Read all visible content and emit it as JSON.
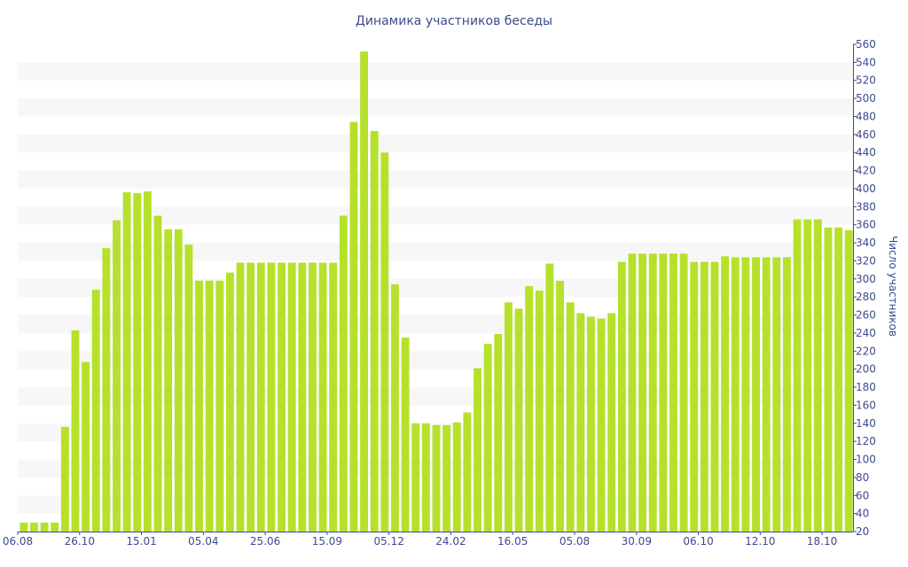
{
  "chart_data": {
    "type": "bar",
    "title": "Динамика участников беседы",
    "xlabel": "",
    "ylabel": "Число участников",
    "ylim": [
      20,
      560
    ],
    "yticks": [
      20,
      40,
      60,
      80,
      100,
      120,
      140,
      160,
      180,
      200,
      220,
      240,
      260,
      280,
      300,
      320,
      340,
      360,
      380,
      400,
      420,
      440,
      460,
      480,
      500,
      520,
      540,
      560
    ],
    "grid": "horizontal bands",
    "y_axis_position": "right",
    "bar_color": "#b5e12b",
    "band_color": "#f7f7f7",
    "text_color": "#3b4b8c",
    "values": [
      30,
      30,
      30,
      30,
      136,
      243,
      208,
      288,
      334,
      365,
      396,
      395,
      397,
      370,
      355,
      355,
      338,
      298,
      298,
      298,
      307,
      318,
      318,
      318,
      318,
      318,
      318,
      318,
      318,
      318,
      318,
      370,
      474,
      552,
      464,
      440,
      294,
      235,
      140,
      140,
      138,
      138,
      141,
      152,
      201,
      228,
      239,
      274,
      267,
      292,
      287,
      317,
      298,
      274,
      262,
      258,
      256,
      262,
      319,
      328,
      328,
      328,
      328,
      328,
      328,
      319,
      319,
      319,
      325,
      324,
      324,
      324,
      324,
      324,
      324,
      366,
      366,
      366,
      357,
      357,
      354
    ],
    "xtick_labels": [
      {
        "index": 0,
        "label": "06.08"
      },
      {
        "index": 6,
        "label": "26.10"
      },
      {
        "index": 12,
        "label": "15.01"
      },
      {
        "index": 18,
        "label": "05.04"
      },
      {
        "index": 24,
        "label": "25.06"
      },
      {
        "index": 30,
        "label": "15.09"
      },
      {
        "index": 36,
        "label": "05.12"
      },
      {
        "index": 42,
        "label": "24.02"
      },
      {
        "index": 48,
        "label": "16.05"
      },
      {
        "index": 54,
        "label": "05.08"
      },
      {
        "index": 60,
        "label": "30.09"
      },
      {
        "index": 66,
        "label": "06.10"
      },
      {
        "index": 72,
        "label": "12.10"
      },
      {
        "index": 78,
        "label": "18.10"
      }
    ]
  }
}
